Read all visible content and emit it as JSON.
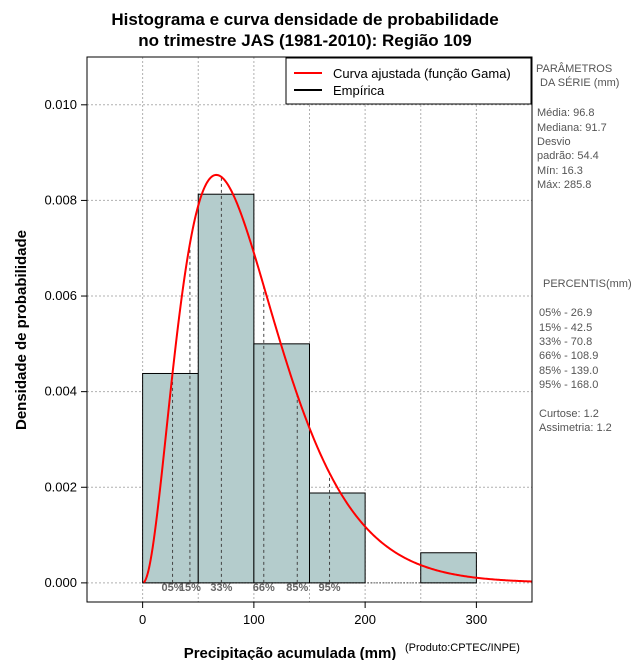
{
  "chart_data": {
    "type": "bar",
    "title_line1": "Histograma e curva densidade de probabilidade",
    "title_line2": "no trimestre JAS (1981-2010): Região 109",
    "xlabel": "Precipitação acumulada (mm)",
    "ylabel": "Densidade de probabilidade",
    "credit": "(Produto:CPTEC/INPE)",
    "xlim": [
      -50,
      350
    ],
    "ylim": [
      -0.0004,
      0.011
    ],
    "x_ticks": [
      0,
      100,
      200,
      300
    ],
    "y_ticks": [
      0.0,
      0.002,
      0.004,
      0.006,
      0.008,
      0.01
    ],
    "y_tick_labels": [
      "0.000",
      "0.002",
      "0.004",
      "0.006",
      "0.008",
      "0.010"
    ],
    "bins": [
      {
        "start": 0,
        "end": 50,
        "density": 0.00438
      },
      {
        "start": 50,
        "end": 100,
        "density": 0.00813
      },
      {
        "start": 100,
        "end": 150,
        "density": 0.005
      },
      {
        "start": 150,
        "end": 200,
        "density": 0.00188
      },
      {
        "start": 200,
        "end": 250,
        "density": 0.0
      },
      {
        "start": 250,
        "end": 300,
        "density": 0.00063
      }
    ],
    "gamma_fit": {
      "mean": 96.8,
      "sd": 54.4
    },
    "percentile_lines": [
      {
        "label": "05%",
        "x": 26.9
      },
      {
        "label": "15%",
        "x": 42.5
      },
      {
        "label": "33%",
        "x": 70.8
      },
      {
        "label": "66%",
        "x": 108.9
      },
      {
        "label": "85%",
        "x": 139.0
      },
      {
        "label": "95%",
        "x": 168.0
      }
    ],
    "legend": [
      {
        "label": "Curva ajustada (função Gama)",
        "color": "#ff0000"
      },
      {
        "label": "Empírica",
        "color": "#000000"
      }
    ],
    "legend_position": "top-right",
    "grid": true,
    "colors": {
      "bar_fill": "#b4cccc",
      "curve": "#ff0000",
      "grid": "#b0b0b0"
    }
  },
  "side_panel": {
    "params_title_1": "PARÂMETROS",
    "params_title_2": "DA SÉRIE (mm)",
    "media": "Média:  96.8",
    "mediana": "Mediana:  91.7",
    "desvio_1": "Desvio",
    "desvio_2": "padrão:  54.4",
    "min": "Mín:  16.3",
    "max": "Máx:  285.8",
    "percentis_title": "PERCENTIS(mm)",
    "p05": "05% -  26.9",
    "p15": "15% -  42.5",
    "p33": "33% -  70.8",
    "p66": "66% -  108.9",
    "p85": "85% -  139.0",
    "p95": "95% -  168.0",
    "curtose": "Curtose:  1.2",
    "assimetria": "Assimetria:  1.2"
  }
}
